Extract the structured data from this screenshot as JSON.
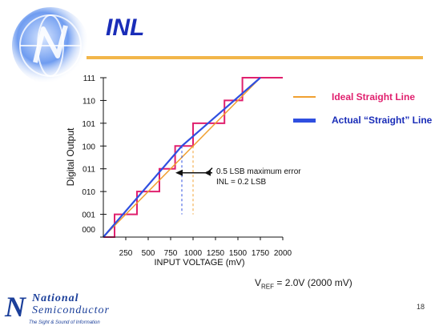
{
  "slide": {
    "title": "INL",
    "page_number": "18",
    "vref_prefix": "V",
    "vref_sub": "REF",
    "vref_suffix": " = 2.0V (2000 mV)"
  },
  "logo": {
    "mark": "N",
    "word1": "National",
    "word2": "Semiconductor",
    "tagline": "The Sight & Sound of Information"
  },
  "colors": {
    "title": "#1a2db8",
    "accent_rule": "#f2b64a",
    "ideal": "#f0a030",
    "actual": "#2f4fe0",
    "staircase": "#e0206e"
  },
  "chart_data": {
    "type": "line",
    "xlabel": "INPUT VOLTAGE (mV)",
    "ylabel": "Digital Output",
    "xlim": [
      0,
      2000
    ],
    "ylim": [
      0,
      7
    ],
    "x_ticks": [
      250,
      500,
      750,
      1000,
      1250,
      1500,
      1750,
      2000
    ],
    "x_tick_labels": [
      "250",
      "500",
      "750",
      "1000",
      "1250",
      "1500",
      "1750",
      "2000"
    ],
    "y_ticks": [
      0,
      1,
      2,
      3,
      4,
      5,
      6,
      7
    ],
    "y_tick_labels": [
      "000",
      "001",
      "010",
      "011",
      "100",
      "101",
      "110",
      "111"
    ],
    "grid": false,
    "legend_position": "right",
    "series": [
      {
        "name": "Ideal Straight Line",
        "color": "#f0a030",
        "points": [
          [
            0,
            0
          ],
          [
            1750,
            7
          ]
        ]
      },
      {
        "name": "Actual “Straight” Line",
        "color": "#2f4fe0",
        "points": [
          [
            0,
            0
          ],
          [
            875,
            4
          ],
          [
            1750,
            7
          ]
        ]
      }
    ],
    "staircase": {
      "color": "#e0206e",
      "transitions": [
        125,
        375,
        625,
        800,
        1000,
        1350,
        1550
      ],
      "end_x": 2000
    },
    "error_markers": {
      "x_actual": 875,
      "x_ideal": 1000,
      "y_low": 1,
      "y_high": 4,
      "arrow_from_x": 1000,
      "arrow_to_x": 875,
      "arrow_y": 3
    },
    "annotations": [
      "0.5 LSB maximum error",
      "INL = 0.2 LSB"
    ]
  }
}
